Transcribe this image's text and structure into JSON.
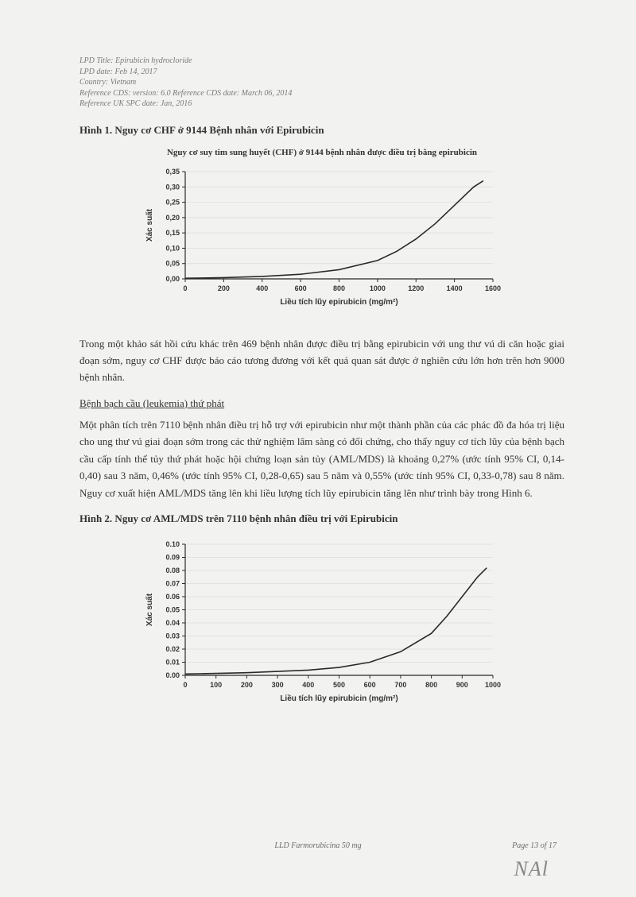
{
  "meta": {
    "line1": "LPD Title: Epirubicin hydrocloride",
    "line2": "LPD date: Feb 14, 2017",
    "line3": "Country: Vietnam",
    "line4": "Reference CDS: version: 6.0   Reference CDS date: March 06, 2014",
    "line5": "Reference UK SPC date: Jan, 2016"
  },
  "fig1": {
    "title": "Hình 1. Nguy cơ CHF ở 9144 Bệnh nhân với Epirubicin",
    "caption": "Nguy cơ suy tim sung huyết (CHF) ở 9144 bệnh nhân được điều trị bằng epirubicin",
    "ylabel": "Xác suất",
    "xlabel": "Liều tích lũy epirubicin (mg/m²)",
    "ymin": 0,
    "ymax": 0.35,
    "ystep": 0.05,
    "yticks": [
      "0,00",
      "0,05",
      "0,10",
      "0,15",
      "0,20",
      "0,25",
      "0,30",
      "0,35"
    ],
    "xmin": 0,
    "xmax": 1600,
    "xstep": 200,
    "xticks": [
      "0",
      "200",
      "400",
      "600",
      "800",
      "1000",
      "1200",
      "1400",
      "1600"
    ],
    "line_color": "#2a2a2a",
    "grid_color": "#dcdcda",
    "axis_color": "#2a2a2a",
    "background": "#f2f2f0",
    "tick_fontsize": 9,
    "label_fontsize": 10,
    "line_width": 1.6,
    "data": [
      [
        0,
        0.002
      ],
      [
        200,
        0.004
      ],
      [
        400,
        0.008
      ],
      [
        600,
        0.015
      ],
      [
        800,
        0.03
      ],
      [
        1000,
        0.06
      ],
      [
        1100,
        0.09
      ],
      [
        1200,
        0.13
      ],
      [
        1300,
        0.18
      ],
      [
        1400,
        0.24
      ],
      [
        1500,
        0.3
      ],
      [
        1550,
        0.32
      ]
    ]
  },
  "para1": "Trong một khảo sát hồi cứu khác trên 469 bệnh nhân được điều trị bằng epirubicin với ung thư vú di căn hoặc giai đoạn sớm, nguy cơ CHF được báo cáo tương đương với kết quả quan sát được ở nghiên cứu lớn hơn trên hơn 9000 bệnh nhân.",
  "section_head": "Bệnh bạch cầu (leukemia) thứ phát",
  "para2": "Một phân tích trên 7110 bệnh nhân điều trị hỗ trợ với epirubicin như một thành phần của các phác đồ đa hóa trị liệu cho ung thư vú giai đoạn sớm trong các thử nghiệm lâm sàng có đối chứng, cho thấy nguy cơ tích lũy của bệnh bạch cầu cấp tính thể tủy thứ phát hoặc hội chứng loạn sản tủy (AML/MDS) là khoảng 0,27% (ước tính 95% CI, 0,14-0,40) sau 3 năm, 0,46% (ước tính 95% CI, 0,28-0,65) sau 5 năm và 0,55% (ước tính 95% CI, 0,33-0,78) sau 8 năm. Nguy cơ xuất hiện AML/MDS tăng lên khi liều lượng tích lũy epirubicin tăng lên như trình bày trong Hình 6.",
  "fig2": {
    "title": "Hình 2. Nguy cơ AML/MDS trên 7110 bệnh nhân điều trị với Epirubicin",
    "ylabel": "Xác suất",
    "xlabel": "Liều tích lũy epirubicin (mg/m²)",
    "ymin": 0,
    "ymax": 0.1,
    "ystep": 0.01,
    "yticks": [
      "0.00",
      "0.01",
      "0.02",
      "0.03",
      "0.04",
      "0.05",
      "0.06",
      "0.07",
      "0.08",
      "0.09",
      "0.10"
    ],
    "xmin": 0,
    "xmax": 1000,
    "xstep": 100,
    "xticks": [
      "0",
      "100",
      "200",
      "300",
      "400",
      "500",
      "600",
      "700",
      "800",
      "900",
      "1000"
    ],
    "line_color": "#2a2a2a",
    "grid_color": "#dcdcda",
    "axis_color": "#2a2a2a",
    "background": "#f2f2f0",
    "tick_fontsize": 9,
    "label_fontsize": 10,
    "line_width": 1.6,
    "data": [
      [
        0,
        0.001
      ],
      [
        200,
        0.002
      ],
      [
        400,
        0.004
      ],
      [
        500,
        0.006
      ],
      [
        600,
        0.01
      ],
      [
        700,
        0.018
      ],
      [
        800,
        0.032
      ],
      [
        850,
        0.045
      ],
      [
        900,
        0.06
      ],
      [
        950,
        0.075
      ],
      [
        980,
        0.082
      ]
    ]
  },
  "footer": {
    "center": "LLD Farmorubicina 50 mg",
    "right": "Page 13 of 17"
  },
  "signature": "NAl"
}
